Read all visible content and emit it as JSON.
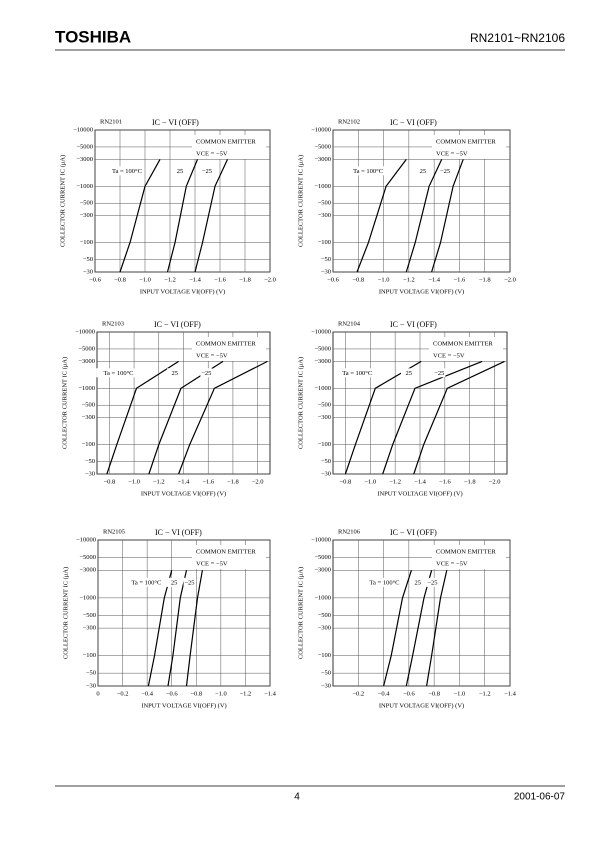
{
  "header": {
    "brand": "TOSHIBA",
    "part": "RN2101~RN2106"
  },
  "footer": {
    "page": "4",
    "date": "2001-06-07"
  },
  "chart_data": [
    {
      "type": "line",
      "title": "RN2101",
      "subtitle": "IC − VI (OFF)",
      "ylabel": "COLLECTOR CURRENT IC (μA)",
      "xlabel": "INPUT VOLTAGE VI(OFF) (V)",
      "annotations": [
        "COMMON EMITTER",
        "VCE = −5V"
      ],
      "log_y": true,
      "grid": true,
      "xlim": [
        -0.6,
        -2.0
      ],
      "ylim": [
        -30,
        -10000
      ],
      "xticks": [
        {
          "value": -0.6,
          "label": "−0.6"
        },
        {
          "value": -0.8,
          "label": "−0.8"
        },
        {
          "value": -1.0,
          "label": "−1.0"
        },
        {
          "value": -1.2,
          "label": "−1.2"
        },
        {
          "value": -1.4,
          "label": "−1.4"
        },
        {
          "value": -1.6,
          "label": "−1.6"
        },
        {
          "value": -1.8,
          "label": "−1.8"
        },
        {
          "value": -2.0,
          "label": "−2.0"
        }
      ],
      "yticks": [
        {
          "value": -10000,
          "label": "−10000"
        },
        {
          "value": -5000,
          "label": "−5000"
        },
        {
          "value": -3000,
          "label": "−3000"
        },
        {
          "value": -1000,
          "label": "−1000"
        },
        {
          "value": -500,
          "label": "−500"
        },
        {
          "value": -300,
          "label": "−300"
        },
        {
          "value": -100,
          "label": "−100"
        },
        {
          "value": -50,
          "label": "−50"
        },
        {
          "value": -30,
          "label": "−30"
        }
      ],
      "series": [
        {
          "name": "Ta = 100°C",
          "color": "#000000",
          "x": [
            -0.8,
            -0.88,
            -1.0,
            -1.12
          ],
          "values": [
            -30,
            -100,
            -1000,
            -3000
          ]
        },
        {
          "name": "25",
          "color": "#000000",
          "x": [
            -1.18,
            -1.24,
            -1.33,
            -1.42
          ],
          "values": [
            -30,
            -100,
            -1000,
            -3000
          ]
        },
        {
          "name": "−25",
          "color": "#000000",
          "x": [
            -1.4,
            -1.46,
            -1.56,
            -1.66
          ],
          "values": [
            -30,
            -100,
            -1000,
            -3000
          ]
        }
      ]
    },
    {
      "type": "line",
      "title": "RN2102",
      "subtitle": "IC − VI (OFF)",
      "ylabel": "COLLECTOR CURRENT IC (μA)",
      "xlabel": "INPUT VOLTAGE VI(OFF) (V)",
      "annotations": [
        "COMMON EMITTER",
        "VCE = −5V"
      ],
      "log_y": true,
      "grid": true,
      "xlim": [
        -0.6,
        -2.0
      ],
      "ylim": [
        -30,
        -10000
      ],
      "xticks": [
        {
          "value": -0.6,
          "label": "−0.6"
        },
        {
          "value": -0.8,
          "label": "−0.8"
        },
        {
          "value": -1.0,
          "label": "−1.0"
        },
        {
          "value": -1.2,
          "label": "−1.2"
        },
        {
          "value": -1.4,
          "label": "−1.4"
        },
        {
          "value": -1.6,
          "label": "−1.6"
        },
        {
          "value": -1.8,
          "label": "−1.8"
        },
        {
          "value": -2.0,
          "label": "−2.0"
        }
      ],
      "yticks": [
        {
          "value": -10000,
          "label": "−10000"
        },
        {
          "value": -5000,
          "label": "−5000"
        },
        {
          "value": -3000,
          "label": "−3000"
        },
        {
          "value": -1000,
          "label": "−1000"
        },
        {
          "value": -500,
          "label": "−500"
        },
        {
          "value": -300,
          "label": "−300"
        },
        {
          "value": -100,
          "label": "−100"
        },
        {
          "value": -50,
          "label": "−50"
        },
        {
          "value": -30,
          "label": "−30"
        }
      ],
      "series": [
        {
          "name": "Ta = 100°C",
          "color": "#000000",
          "x": [
            -0.79,
            -0.88,
            -1.02,
            -1.18
          ],
          "values": [
            -30,
            -100,
            -1000,
            -3000
          ]
        },
        {
          "name": "25",
          "color": "#000000",
          "x": [
            -1.18,
            -1.25,
            -1.36,
            -1.46
          ],
          "values": [
            -30,
            -100,
            -1000,
            -3000
          ]
        },
        {
          "name": "−25",
          "color": "#000000",
          "x": [
            -1.38,
            -1.45,
            -1.55,
            -1.63
          ],
          "values": [
            -30,
            -100,
            -1000,
            -3000
          ]
        }
      ]
    },
    {
      "type": "line",
      "title": "RN2103",
      "subtitle": "IC − VI (OFF)",
      "ylabel": "COLLECTOR CURRENT IC (μA)",
      "xlabel": "INPUT VOLTAGE VI(OFF) (V)",
      "annotations": [
        "COMMON EMITTER",
        "VCE = −5V"
      ],
      "log_y": true,
      "grid": true,
      "xlim": [
        -0.7,
        -2.1
      ],
      "ylim": [
        -30,
        -10000
      ],
      "xticks": [
        {
          "value": -0.8,
          "label": "−0.8"
        },
        {
          "value": -1.0,
          "label": "−1.0"
        },
        {
          "value": -1.2,
          "label": "−1.2"
        },
        {
          "value": -1.4,
          "label": "−1.4"
        },
        {
          "value": -1.6,
          "label": "−1.6"
        },
        {
          "value": -1.8,
          "label": "−1.8"
        },
        {
          "value": -2.0,
          "label": "−2.0"
        }
      ],
      "yticks": [
        {
          "value": -10000,
          "label": "−10000"
        },
        {
          "value": -5000,
          "label": "−5000"
        },
        {
          "value": -3000,
          "label": "−3000"
        },
        {
          "value": -1000,
          "label": "−1000"
        },
        {
          "value": -500,
          "label": "−500"
        },
        {
          "value": -300,
          "label": "−300"
        },
        {
          "value": -100,
          "label": "−100"
        },
        {
          "value": -50,
          "label": "−50"
        },
        {
          "value": -30,
          "label": "−30"
        }
      ],
      "series": [
        {
          "name": "Ta = 100°C",
          "color": "#000000",
          "x": [
            -0.78,
            -0.86,
            -1.02,
            -1.36
          ],
          "values": [
            -30,
            -100,
            -1000,
            -3000
          ]
        },
        {
          "name": "25",
          "color": "#000000",
          "x": [
            -1.12,
            -1.2,
            -1.38,
            -1.72
          ],
          "values": [
            -30,
            -100,
            -1000,
            -3000
          ]
        },
        {
          "name": "−25",
          "color": "#000000",
          "x": [
            -1.36,
            -1.45,
            -1.65,
            -2.08
          ],
          "values": [
            -30,
            -100,
            -1000,
            -3000
          ]
        }
      ]
    },
    {
      "type": "line",
      "title": "RN2104",
      "subtitle": "IC − VI (OFF)",
      "ylabel": "COLLECTOR CURRENT IC (μA)",
      "xlabel": "INPUT VOLTAGE VI(OFF) (V)",
      "annotations": [
        "COMMON EMITTER",
        "VCE = −5V"
      ],
      "log_y": true,
      "grid": true,
      "xlim": [
        -0.7,
        -2.1
      ],
      "ylim": [
        -30,
        -10000
      ],
      "xticks": [
        {
          "value": -0.8,
          "label": "−0.8"
        },
        {
          "value": -1.0,
          "label": "−1.0"
        },
        {
          "value": -1.2,
          "label": "−1.2"
        },
        {
          "value": -1.4,
          "label": "−1.4"
        },
        {
          "value": -1.6,
          "label": "−1.6"
        },
        {
          "value": -1.8,
          "label": "−1.8"
        },
        {
          "value": -2.0,
          "label": "−2.0"
        }
      ],
      "yticks": [
        {
          "value": -10000,
          "label": "−10000"
        },
        {
          "value": -5000,
          "label": "−5000"
        },
        {
          "value": -3000,
          "label": "−3000"
        },
        {
          "value": -1000,
          "label": "−1000"
        },
        {
          "value": -500,
          "label": "−500"
        },
        {
          "value": -300,
          "label": "−300"
        },
        {
          "value": -100,
          "label": "−100"
        },
        {
          "value": -50,
          "label": "−50"
        },
        {
          "value": -30,
          "label": "−30"
        }
      ],
      "series": [
        {
          "name": "Ta = 100°C",
          "color": "#000000",
          "x": [
            -0.8,
            -0.88,
            -1.04,
            -1.41
          ],
          "values": [
            -30,
            -100,
            -1000,
            -3000
          ]
        },
        {
          "name": "25",
          "color": "#000000",
          "x": [
            -1.1,
            -1.18,
            -1.36,
            -1.9
          ],
          "values": [
            -30,
            -100,
            -1000,
            -3000
          ]
        },
        {
          "name": "−25",
          "color": "#000000",
          "x": [
            -1.35,
            -1.43,
            -1.62,
            -2.08
          ],
          "values": [
            -30,
            -100,
            -1000,
            -3000
          ]
        }
      ]
    },
    {
      "type": "line",
      "title": "RN2105",
      "subtitle": "IC − VI (OFF)",
      "ylabel": "COLLECTOR CURRENT IC (μA)",
      "xlabel": "INPUT VOLTAGE VI(OFF) (V)",
      "annotations": [
        "COMMON EMITTER",
        "VCE = −5V"
      ],
      "log_y": true,
      "grid": true,
      "xlim": [
        0,
        -1.4
      ],
      "ylim": [
        -30,
        -10000
      ],
      "xticks": [
        0,
        {
          "value": -0.2,
          "label": "−0.2"
        },
        {
          "value": -0.4,
          "label": "−0.4"
        },
        {
          "value": -0.6,
          "label": "−0.6"
        },
        {
          "value": -0.8,
          "label": "−0.8"
        },
        {
          "value": -1.0,
          "label": "−1.0"
        },
        {
          "value": -1.2,
          "label": "−1.2"
        },
        {
          "value": -1.4,
          "label": "−1.4"
        }
      ],
      "yticks": [
        {
          "value": -10000,
          "label": "−10000"
        },
        {
          "value": -5000,
          "label": "−5000"
        },
        {
          "value": -3000,
          "label": "−3000"
        },
        {
          "value": -1000,
          "label": "−1000"
        },
        {
          "value": -500,
          "label": "−500"
        },
        {
          "value": -300,
          "label": "−300"
        },
        {
          "value": -100,
          "label": "−100"
        },
        {
          "value": -50,
          "label": "−50"
        },
        {
          "value": -30,
          "label": "−30"
        }
      ],
      "series": [
        {
          "name": "Ta = 100°C",
          "color": "#000000",
          "x": [
            -0.41,
            -0.46,
            -0.54,
            -0.6
          ],
          "values": [
            -30,
            -100,
            -1000,
            -3000
          ]
        },
        {
          "name": "25",
          "color": "#000000",
          "x": [
            -0.57,
            -0.61,
            -0.67,
            -0.72
          ],
          "values": [
            -30,
            -100,
            -1000,
            -3000
          ]
        },
        {
          "name": "−25",
          "color": "#000000",
          "x": [
            -0.72,
            -0.75,
            -0.81,
            -0.85
          ],
          "values": [
            -30,
            -100,
            -1000,
            -3000
          ]
        }
      ]
    },
    {
      "type": "line",
      "title": "RN2106",
      "subtitle": "IC − VI (OFF)",
      "ylabel": "COLLECTOR CURRENT IC (μA)",
      "xlabel": "INPUT VOLTAGE VI(OFF) (V)",
      "annotations": [
        "COMMON EMITTER",
        "VCE = −5V"
      ],
      "log_y": true,
      "grid": true,
      "xlim": [
        0,
        -1.4
      ],
      "ylim": [
        -30,
        -10000
      ],
      "xticks": [
        {
          "value": -0.2,
          "label": "−0.2"
        },
        {
          "value": -0.4,
          "label": "−0.4"
        },
        {
          "value": -0.6,
          "label": "−0.6"
        },
        {
          "value": -0.8,
          "label": "−0.8"
        },
        {
          "value": -1.0,
          "label": "−1.0"
        },
        {
          "value": -1.2,
          "label": "−1.2"
        },
        {
          "value": -1.4,
          "label": "−1.4"
        }
      ],
      "yticks": [
        {
          "value": -10000,
          "label": "−10000"
        },
        {
          "value": -5000,
          "label": "−5000"
        },
        {
          "value": -3000,
          "label": "−3000"
        },
        {
          "value": -1000,
          "label": "−1000"
        },
        {
          "value": -500,
          "label": "−500"
        },
        {
          "value": -300,
          "label": "−300"
        },
        {
          "value": -100,
          "label": "−100"
        },
        {
          "value": -50,
          "label": "−50"
        },
        {
          "value": -30,
          "label": "−30"
        }
      ],
      "series": [
        {
          "name": "Ta = 100°C",
          "color": "#000000",
          "x": [
            -0.4,
            -0.46,
            -0.55,
            -0.62
          ],
          "values": [
            -30,
            -100,
            -1000,
            -3000
          ]
        },
        {
          "name": "25",
          "color": "#000000",
          "x": [
            -0.58,
            -0.63,
            -0.72,
            -0.78
          ],
          "values": [
            -30,
            -100,
            -1000,
            -3000
          ]
        },
        {
          "name": "−25",
          "color": "#000000",
          "x": [
            -0.74,
            -0.78,
            -0.85,
            -0.9
          ],
          "values": [
            -30,
            -100,
            -1000,
            -3000
          ]
        }
      ]
    }
  ]
}
